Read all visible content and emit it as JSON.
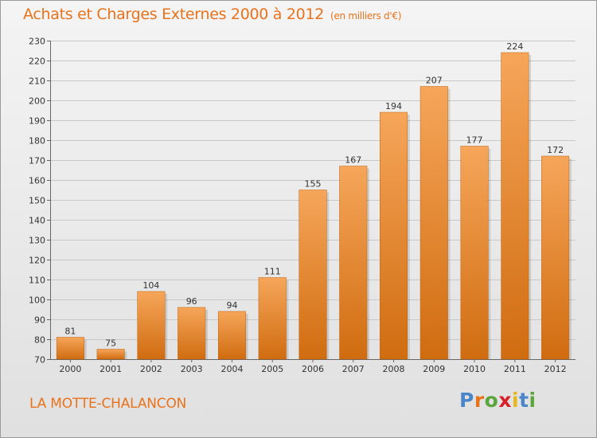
{
  "title": "Achats et Charges Externes 2000 à 2012",
  "unit": "(en milliers d'€)",
  "commune": "LA MOTTE-CHALANCON",
  "logo": {
    "text": "Proxiti",
    "letters": [
      "P",
      "r",
      "o",
      "x",
      "i",
      "t",
      "i"
    ],
    "colors": [
      "#4a86c8",
      "#e8731c",
      "#5aa63c",
      "#d8202a",
      "#e8b61c",
      "#4a86c8",
      "#5aa63c"
    ]
  },
  "colors": {
    "bar_top": "#f6a65a",
    "bar_bottom": "#d06c10",
    "text_accent": "#e8731c"
  },
  "chart_data": {
    "type": "bar",
    "categories": [
      "2000",
      "2001",
      "2002",
      "2003",
      "2004",
      "2005",
      "2006",
      "2007",
      "2008",
      "2009",
      "2010",
      "2011",
      "2012"
    ],
    "values": [
      81,
      75,
      104,
      96,
      94,
      111,
      155,
      167,
      194,
      207,
      177,
      224,
      172
    ],
    "ylim": [
      70,
      230
    ],
    "yticks": [
      70,
      80,
      90,
      100,
      110,
      120,
      130,
      140,
      150,
      160,
      170,
      180,
      190,
      200,
      210,
      220,
      230
    ],
    "grid": true
  }
}
